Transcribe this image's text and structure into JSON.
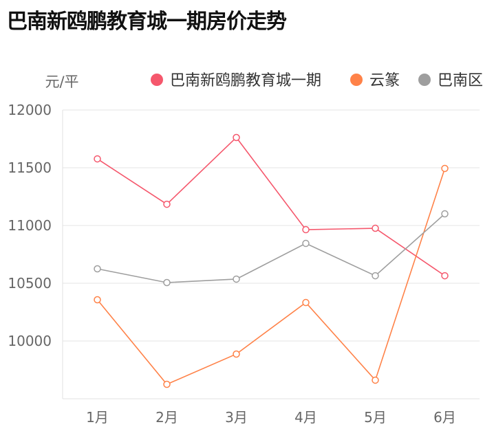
{
  "chart_data": {
    "type": "line",
    "title": "巴南新鸥鹏教育城一期房价走势",
    "ylabel": "元/平",
    "categories": [
      "1月",
      "2月",
      "3月",
      "4月",
      "5月",
      "6月"
    ],
    "ylim": [
      9500,
      12000
    ],
    "yticks": [
      10000,
      10500,
      11000,
      11500,
      12000
    ],
    "grid": true,
    "legend": "top-right",
    "series": [
      {
        "name": "巴南新鸥鹏教育城一期",
        "color": "#f5576c",
        "values": [
          11577,
          11184,
          11762,
          10964,
          10976,
          10565
        ]
      },
      {
        "name": "云篆",
        "color": "#ff8248",
        "values": [
          10357,
          9625,
          9887,
          10333,
          9661,
          11494
        ]
      },
      {
        "name": "巴南区",
        "color": "#9e9e9e",
        "values": [
          10625,
          10506,
          10536,
          10845,
          10565,
          11101
        ]
      }
    ]
  }
}
